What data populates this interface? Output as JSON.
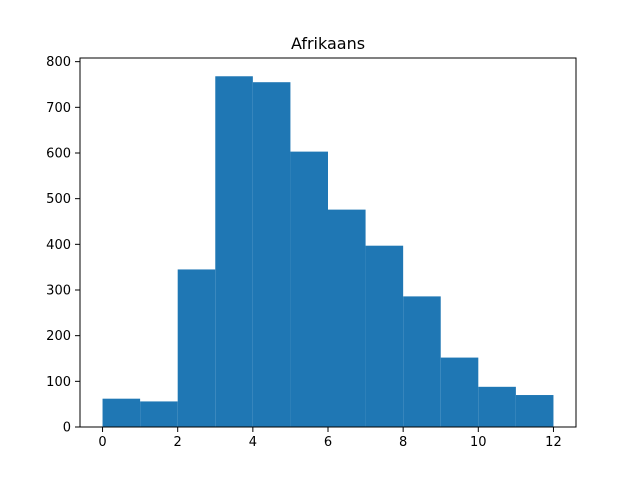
{
  "chart_data": {
    "type": "bar",
    "title": "Afrikaans",
    "xlabel": "",
    "ylabel": "",
    "xlim": [
      -0.6,
      12.6
    ],
    "ylim": [
      0,
      808
    ],
    "x_ticks": [
      0,
      2,
      4,
      6,
      8,
      10,
      12
    ],
    "y_ticks": [
      0,
      100,
      200,
      300,
      400,
      500,
      600,
      700,
      800
    ],
    "grid": false,
    "bar_color": "#1f77b4",
    "bins": [
      {
        "x0": 0.0,
        "x1": 1.0,
        "value": 62
      },
      {
        "x0": 1.0,
        "x1": 2.0,
        "value": 56
      },
      {
        "x0": 2.0,
        "x1": 3.0,
        "value": 345
      },
      {
        "x0": 3.0,
        "x1": 4.0,
        "value": 768
      },
      {
        "x0": 4.0,
        "x1": 5.0,
        "value": 755
      },
      {
        "x0": 5.0,
        "x1": 6.0,
        "value": 603
      },
      {
        "x0": 6.0,
        "x1": 7.0,
        "value": 476
      },
      {
        "x0": 7.0,
        "x1": 8.0,
        "value": 397
      },
      {
        "x0": 8.0,
        "x1": 9.0,
        "value": 286
      },
      {
        "x0": 9.0,
        "x1": 10.0,
        "value": 152
      },
      {
        "x0": 10.0,
        "x1": 11.0,
        "value": 88
      },
      {
        "x0": 11.0,
        "x1": 12.0,
        "value": 70
      }
    ]
  }
}
